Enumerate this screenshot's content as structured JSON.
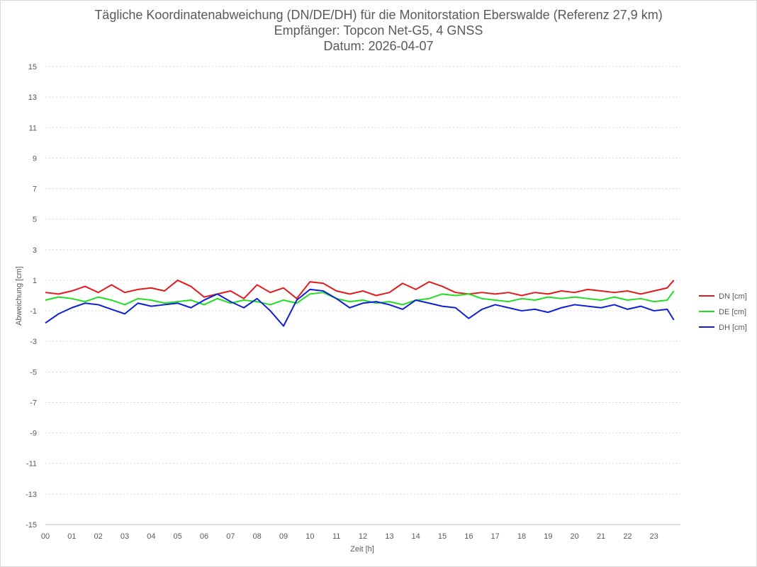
{
  "chart_data": {
    "type": "line",
    "title": "Tägliche Koordinatenabweichung (DN/DE/DH) für die Monitorstation Eberswalde (Referenz 27,9 km)",
    "subtitle": "Empfänger: Topcon Net-G5, 4 GNSS",
    "date_line": "Datum: 2026-04-07",
    "xlabel": "Zeit [h]",
    "ylabel": "Abweichung [cm]",
    "xlim": [
      0,
      24
    ],
    "ylim": [
      -15,
      15
    ],
    "x_tick_labels": [
      "00",
      "01",
      "02",
      "03",
      "04",
      "05",
      "06",
      "07",
      "08",
      "09",
      "10",
      "11",
      "12",
      "13",
      "14",
      "15",
      "16",
      "17",
      "18",
      "19",
      "20",
      "21",
      "22",
      "23"
    ],
    "y_tick_labels": [
      "15",
      "13",
      "11",
      "9",
      "7",
      "5",
      "3",
      "1",
      "-1",
      "-3",
      "-5",
      "-7",
      "-9",
      "-11",
      "-13",
      "-15"
    ],
    "grid": true,
    "legend_position": "right",
    "x": [
      0,
      0.5,
      1,
      1.5,
      2,
      2.5,
      3,
      3.5,
      4,
      4.5,
      5,
      5.5,
      6,
      6.5,
      7,
      7.5,
      8,
      8.5,
      9,
      9.5,
      10,
      10.5,
      11,
      11.5,
      12,
      12.5,
      13,
      13.5,
      14,
      14.5,
      15,
      15.5,
      16,
      16.5,
      17,
      17.5,
      18,
      18.5,
      19,
      19.5,
      20,
      20.5,
      21,
      21.5,
      22,
      22.5,
      23,
      23.5,
      23.75
    ],
    "series": [
      {
        "name": "DN [cm]",
        "color": "#e31a1c",
        "values": [
          0.2,
          0.1,
          0.3,
          0.6,
          0.2,
          0.7,
          0.2,
          0.4,
          0.5,
          0.3,
          1.0,
          0.6,
          -0.1,
          0.1,
          0.3,
          -0.2,
          0.7,
          0.2,
          0.5,
          -0.2,
          0.9,
          0.8,
          0.3,
          0.1,
          0.3,
          0.0,
          0.2,
          0.8,
          0.4,
          0.9,
          0.6,
          0.2,
          0.1,
          0.2,
          0.1,
          0.2,
          0.0,
          0.2,
          0.1,
          0.3,
          0.2,
          0.4,
          0.3,
          0.2,
          0.3,
          0.1,
          0.3,
          0.5,
          1.0
        ]
      },
      {
        "name": "DE [cm]",
        "color": "#22dd22",
        "values": [
          -0.3,
          -0.1,
          -0.2,
          -0.4,
          -0.1,
          -0.3,
          -0.6,
          -0.2,
          -0.3,
          -0.5,
          -0.4,
          -0.3,
          -0.6,
          -0.2,
          -0.5,
          -0.3,
          -0.4,
          -0.6,
          -0.3,
          -0.5,
          0.1,
          0.2,
          -0.2,
          -0.4,
          -0.3,
          -0.5,
          -0.4,
          -0.6,
          -0.3,
          -0.2,
          0.1,
          0.0,
          0.1,
          -0.2,
          -0.3,
          -0.4,
          -0.2,
          -0.3,
          -0.1,
          -0.2,
          -0.1,
          -0.2,
          -0.3,
          -0.1,
          -0.3,
          -0.2,
          -0.4,
          -0.3,
          0.3
        ]
      },
      {
        "name": "DH [cm]",
        "color": "#0d1fd6",
        "values": [
          -1.8,
          -1.2,
          -0.8,
          -0.5,
          -0.6,
          -0.9,
          -1.2,
          -0.5,
          -0.7,
          -0.6,
          -0.5,
          -0.8,
          -0.3,
          0.1,
          -0.4,
          -0.8,
          -0.2,
          -1.0,
          -2.0,
          -0.3,
          0.4,
          0.3,
          -0.2,
          -0.8,
          -0.5,
          -0.4,
          -0.6,
          -0.9,
          -0.3,
          -0.5,
          -0.7,
          -0.8,
          -1.5,
          -0.9,
          -0.6,
          -0.8,
          -1.0,
          -0.9,
          -1.1,
          -0.8,
          -0.6,
          -0.7,
          -0.8,
          -0.6,
          -0.9,
          -0.7,
          -1.0,
          -0.9,
          -1.6
        ]
      }
    ]
  }
}
